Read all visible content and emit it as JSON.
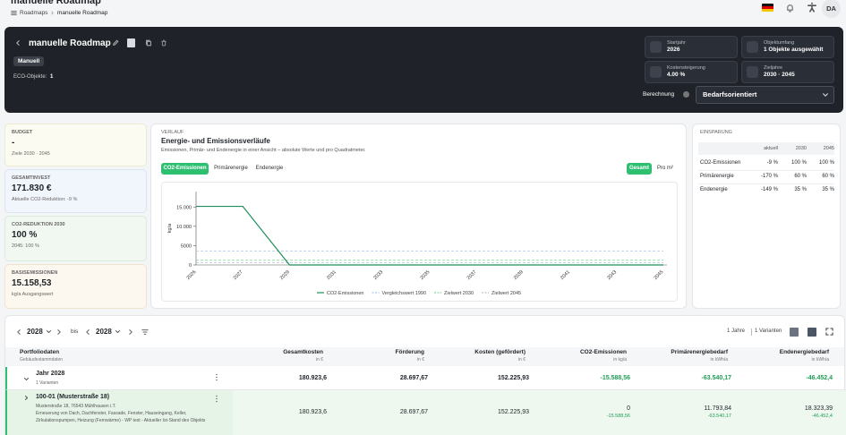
{
  "topbar": {
    "title": "manuelle Roadmap",
    "breadcrumb": [
      "Roadmaps",
      "manuelle Roadmap"
    ],
    "avatar": "DA"
  },
  "header": {
    "title": "manuelle Roadmap",
    "badge": "Manuell",
    "eco_label": "ECO-Objekte:",
    "eco_value": "1",
    "settings": [
      {
        "label": "Startjahr",
        "value": "2026"
      },
      {
        "label": "Objektumfang",
        "value": "1 Objekte ausgewählt"
      },
      {
        "label": "Kostensteigerung",
        "value": "4.00 %"
      },
      {
        "label": "Zieljahre",
        "value": "2030 · 2045"
      }
    ],
    "calc_label": "Berechnung",
    "calc_value": "Bedarfsorientiert"
  },
  "kpis": [
    {
      "label": "BUDGET",
      "value": "-",
      "note": "Ziele 2030 · 2045"
    },
    {
      "label": "GESAMTINVEST",
      "value": "171.830 €",
      "note": "Aktuelle CO2-Reduktion: -9 %"
    },
    {
      "label": "CO2-REDUKTION 2030",
      "value": "100 %",
      "note": "2045: 100 %"
    },
    {
      "label": "BASISEMISSIONEN",
      "value": "15.158,53",
      "note": "kg/a Ausgangswert"
    }
  ],
  "verlauf": {
    "kicker": "VERLAUF",
    "title": "Energie- und Emissionsverläufe",
    "subtitle": "Emissionen, Primär- und Endenergie in einer Ansicht – absolute Werte und pro Quadratmeter.",
    "tabs": [
      "CO2-Emissionen",
      "Primärenergie",
      "Endenergie"
    ],
    "modes": [
      "Gesamt",
      "Pro m²"
    ]
  },
  "chart_data": {
    "type": "line",
    "ylabel": "kg/a",
    "categories": [
      "2026",
      "2027",
      "2029",
      "2031",
      "2033",
      "2035",
      "2037",
      "2039",
      "2041",
      "2043",
      "2045"
    ],
    "ylim": [
      0,
      19000
    ],
    "yticks": [
      0,
      5000,
      {
        "value": 10000,
        "label": "10.000"
      },
      {
        "value": 15000,
        "label": "15.000"
      }
    ],
    "series": [
      {
        "name": "CO2-Emissionen",
        "color": "#1f8f5a",
        "dashed": false,
        "values": [
          15158.53,
          15158.53,
          0,
          0,
          0,
          0,
          0,
          0,
          0,
          0,
          0
        ]
      },
      {
        "name": "Vergleichswert 1990",
        "color": "#a9c7e8",
        "dashed": true,
        "values": [
          3600,
          3600,
          3600,
          3600,
          3600,
          3600,
          3600,
          3600,
          3600,
          3600,
          3600
        ]
      },
      {
        "name": "Zielwert 2030",
        "color": "#86d3a0",
        "dashed": true,
        "values": [
          1200,
          1200,
          1200,
          1200,
          1200,
          1200,
          1200,
          1200,
          1200,
          1200,
          1200
        ]
      },
      {
        "name": "Zielwert 2045",
        "color": "#b9c3cf",
        "dashed": true,
        "values": [
          600,
          600,
          600,
          600,
          600,
          600,
          600,
          600,
          600,
          600,
          600
        ]
      }
    ]
  },
  "savings": {
    "title": "EINSPARUNG",
    "columns": [
      "aktuell",
      "2030",
      "2045"
    ],
    "rows": [
      [
        "CO2-Emissionen",
        "-9 %",
        "100 %",
        "100 %"
      ],
      [
        "Primärenergie",
        "-170 %",
        "60 %",
        "60 %"
      ],
      [
        "Endenergie",
        "-149 %",
        "35 %",
        "35 %"
      ]
    ]
  },
  "toolbar": {
    "from": "2028",
    "to_label": "bis",
    "to": "2028",
    "years": "1 Jahre",
    "variants": "1 Varianten"
  },
  "table": {
    "columns": [
      [
        "Portfoliodaten",
        "Gebäudestammdaten"
      ],
      [
        "Gesamtkosten",
        "in €"
      ],
      [
        "Förderung",
        "in €"
      ],
      [
        "Kosten (gefördert)",
        "in €"
      ],
      [
        "CO2-Emissionen",
        "in kg/a"
      ],
      [
        "Primärenergiebedarf",
        "in kWh/a"
      ],
      [
        "Endenergiebedarf",
        "in kWh/a"
      ]
    ],
    "rows": [
      {
        "title": "Jahr 2028",
        "sub": "1 Varianten",
        "cells": [
          "180.923,6",
          "28.697,67",
          "152.225,93",
          "-15.588,56",
          "-63.540,17",
          "-46.452,4"
        ]
      },
      {
        "title": "100-01 (Musterstraße 18)",
        "address": "Musterstraße 18, 76543 Mühlhausen i.T.",
        "desc": "Erneuerung von Dach, Dachfenster, Fassade, Fenster, Hauseingang, Keller, Zirkulationspumpen, Heizung (Fernwärme) - WP test - Aktueller Ist-Stand des Objekts",
        "cells": [
          "180.923,6",
          "28.697,67",
          "152.225,93",
          "0",
          "11.793,84",
          "18.323,39"
        ],
        "deltas": [
          "",
          "",
          "",
          "-15.588,56",
          "-63.540,17",
          "-46.452,4"
        ]
      }
    ]
  }
}
